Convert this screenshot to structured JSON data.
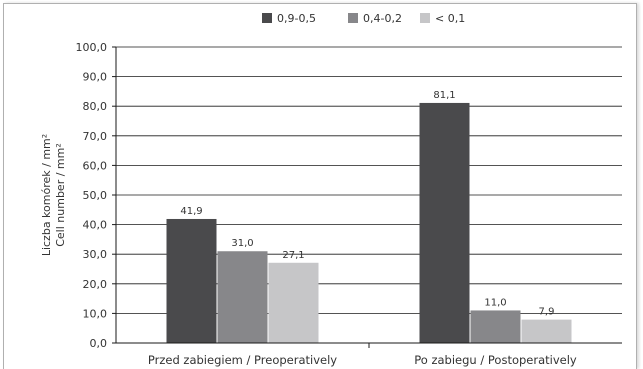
{
  "chart_data": {
    "type": "bar",
    "categories": [
      "Przed zabiegiem / Preoperatively",
      "Po zabiegu / Postoperatively"
    ],
    "series": [
      {
        "name": "0,9-0,5",
        "values": [
          41.9,
          81.1
        ],
        "labels": [
          "41,9",
          "81,1"
        ],
        "color": "#4a4a4c"
      },
      {
        "name": "0,4-0,2",
        "values": [
          31.0,
          11.0
        ],
        "labels": [
          "31,0",
          "11,0"
        ],
        "color": "#87878a"
      },
      {
        "name": "< 0,1",
        "values": [
          27.1,
          7.9
        ],
        "labels": [
          "27,1",
          "7,9"
        ],
        "color": "#c6c6c8"
      }
    ],
    "ylabel": [
      "Liczba komórek / mm²",
      "Cell number / mm²"
    ],
    "ylim": [
      0,
      100
    ],
    "yticks": [
      0,
      10,
      20,
      30,
      40,
      50,
      60,
      70,
      80,
      90,
      100
    ],
    "ytick_labels": [
      "0,0",
      "10,0",
      "20,0",
      "30,0",
      "40,0",
      "50,0",
      "60,0",
      "70,0",
      "80,0",
      "90,0",
      "100,0"
    ],
    "grid": true,
    "legend": "top-center"
  }
}
